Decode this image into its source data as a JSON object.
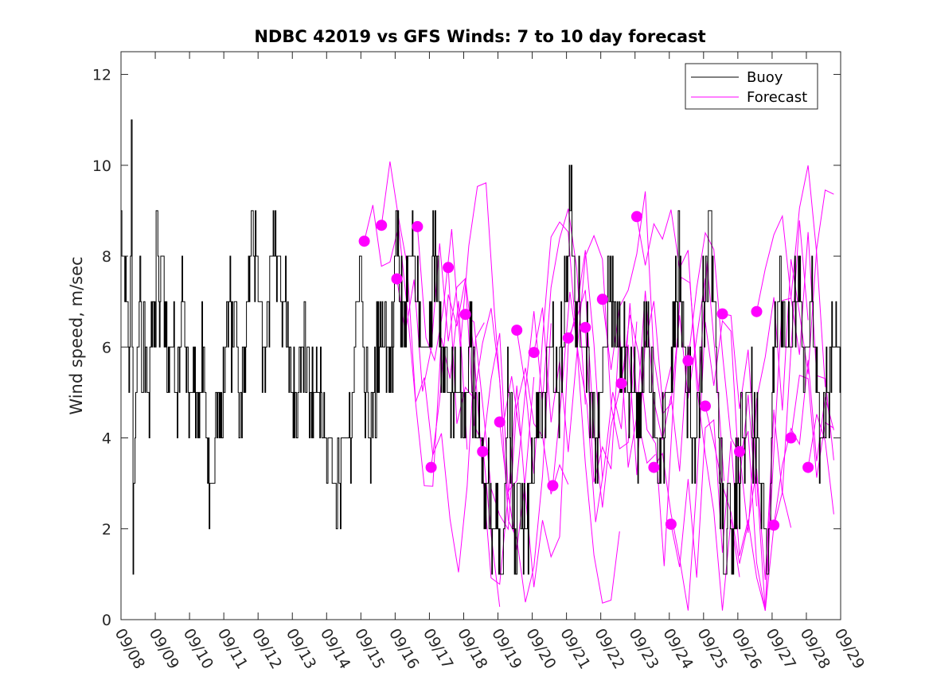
{
  "chart_data": {
    "type": "line",
    "title": "NDBC 42019 vs GFS Winds: 7 to 10 day forecast",
    "xlabel": "",
    "ylabel": "Wind speed, m/sec",
    "xlim": [
      0,
      21
    ],
    "ylim": [
      0,
      12.5
    ],
    "x_tick_labels": [
      "09/08",
      "09/09",
      "09/10",
      "09/11",
      "09/12",
      "09/13",
      "09/14",
      "09/15",
      "09/16",
      "09/17",
      "09/18",
      "09/19",
      "09/20",
      "09/21",
      "09/22",
      "09/23",
      "09/24",
      "09/25",
      "09/26",
      "09/27",
      "09/28",
      "09/29"
    ],
    "y_ticks": [
      0,
      2,
      4,
      6,
      8,
      10,
      12
    ],
    "legend": [
      "Buoy",
      "Forecast"
    ],
    "legend_position": "top-right",
    "colors": {
      "buoy": "#000000",
      "forecast": "#ff00ff"
    },
    "buoy_samples": [
      [
        0.0,
        9
      ],
      [
        0.05,
        8
      ],
      [
        0.15,
        7
      ],
      [
        0.25,
        6
      ],
      [
        0.3,
        11
      ],
      [
        0.35,
        2
      ],
      [
        0.45,
        5
      ],
      [
        0.55,
        8
      ],
      [
        0.6,
        5
      ],
      [
        0.7,
        6
      ],
      [
        0.8,
        5
      ],
      [
        0.9,
        7
      ],
      [
        1.0,
        6
      ],
      [
        1.05,
        9
      ],
      [
        1.1,
        7
      ],
      [
        1.2,
        8
      ],
      [
        1.3,
        6
      ],
      [
        1.5,
        6
      ],
      [
        1.6,
        5
      ],
      [
        1.8,
        7
      ],
      [
        1.9,
        6
      ],
      [
        2.0,
        5
      ],
      [
        2.3,
        5
      ],
      [
        2.4,
        6
      ],
      [
        2.5,
        4
      ],
      [
        2.55,
        3
      ],
      [
        2.7,
        3
      ],
      [
        2.8,
        5
      ],
      [
        3.0,
        5
      ],
      [
        3.1,
        7
      ],
      [
        3.3,
        6
      ],
      [
        3.5,
        5
      ],
      [
        3.6,
        6
      ],
      [
        3.8,
        9
      ],
      [
        3.9,
        8
      ],
      [
        4.0,
        7
      ],
      [
        4.2,
        6
      ],
      [
        4.4,
        8
      ],
      [
        4.6,
        8
      ],
      [
        4.7,
        7
      ],
      [
        4.9,
        6
      ],
      [
        5.0,
        5
      ],
      [
        5.1,
        5
      ],
      [
        5.3,
        6
      ],
      [
        5.6,
        5
      ],
      [
        5.8,
        5
      ],
      [
        5.9,
        4
      ],
      [
        6.1,
        4
      ],
      [
        6.2,
        3
      ],
      [
        6.4,
        3
      ],
      [
        6.5,
        4
      ],
      [
        6.7,
        4
      ],
      [
        6.85,
        6
      ],
      [
        7.0,
        8
      ],
      [
        7.1,
        5
      ],
      [
        7.3,
        4
      ],
      [
        7.5,
        6
      ],
      [
        7.7,
        6
      ],
      [
        7.9,
        6
      ],
      [
        8.0,
        8
      ],
      [
        8.2,
        7
      ],
      [
        8.5,
        8
      ],
      [
        8.8,
        6
      ],
      [
        9.0,
        6
      ],
      [
        9.1,
        8
      ],
      [
        9.4,
        6
      ],
      [
        9.6,
        5
      ],
      [
        9.8,
        5
      ],
      [
        10.0,
        4
      ],
      [
        10.2,
        6
      ],
      [
        10.4,
        4
      ],
      [
        10.7,
        3
      ],
      [
        10.9,
        2
      ],
      [
        11.1,
        1
      ],
      [
        11.3,
        5
      ],
      [
        11.5,
        2
      ],
      [
        11.6,
        3
      ],
      [
        11.8,
        2
      ],
      [
        12.0,
        3
      ],
      [
        12.1,
        4
      ],
      [
        12.3,
        5
      ],
      [
        12.5,
        6
      ],
      [
        12.7,
        5
      ],
      [
        12.9,
        6
      ],
      [
        13.1,
        9
      ],
      [
        13.3,
        7
      ],
      [
        13.5,
        6
      ],
      [
        13.7,
        5
      ],
      [
        13.9,
        4
      ],
      [
        14.1,
        6
      ],
      [
        14.3,
        7
      ],
      [
        14.5,
        6
      ],
      [
        14.7,
        6
      ],
      [
        14.9,
        5
      ],
      [
        15.1,
        4
      ],
      [
        15.3,
        6
      ],
      [
        15.5,
        5
      ],
      [
        15.7,
        3
      ],
      [
        15.9,
        4
      ],
      [
        16.1,
        6
      ],
      [
        16.3,
        8
      ],
      [
        16.5,
        5
      ],
      [
        16.7,
        4
      ],
      [
        16.85,
        5
      ],
      [
        17.0,
        7
      ],
      [
        17.2,
        9
      ],
      [
        17.4,
        5
      ],
      [
        17.6,
        1
      ],
      [
        17.8,
        2
      ],
      [
        18.0,
        3
      ],
      [
        18.3,
        5
      ],
      [
        18.5,
        4
      ],
      [
        18.7,
        3
      ],
      [
        18.9,
        1
      ],
      [
        19.0,
        5
      ],
      [
        19.2,
        7
      ],
      [
        19.5,
        6
      ],
      [
        19.7,
        7
      ],
      [
        20.0,
        6
      ],
      [
        20.2,
        7
      ],
      [
        20.4,
        4
      ],
      [
        20.6,
        5
      ],
      [
        20.8,
        6
      ],
      [
        21.0,
        6
      ]
    ],
    "forecast_series_count": 14,
    "forecast_points": [
      [
        7.1,
        8.33
      ],
      [
        7.6,
        8.68
      ],
      [
        8.05,
        7.5
      ],
      [
        8.65,
        8.65
      ],
      [
        9.05,
        3.35
      ],
      [
        9.55,
        7.75
      ],
      [
        10.05,
        6.72
      ],
      [
        10.55,
        3.7
      ],
      [
        11.05,
        4.35
      ],
      [
        11.55,
        6.37
      ],
      [
        12.05,
        5.88
      ],
      [
        12.6,
        2.95
      ],
      [
        13.05,
        6.2
      ],
      [
        13.55,
        6.43
      ],
      [
        14.05,
        7.05
      ],
      [
        14.6,
        5.2
      ],
      [
        15.05,
        8.87
      ],
      [
        15.55,
        3.35
      ],
      [
        16.05,
        2.1
      ],
      [
        16.55,
        5.7
      ],
      [
        17.05,
        4.7
      ],
      [
        17.55,
        6.73
      ],
      [
        18.05,
        3.7
      ],
      [
        18.55,
        6.78
      ],
      [
        19.05,
        2.08
      ],
      [
        19.55,
        4.0
      ],
      [
        20.05,
        3.35
      ]
    ]
  }
}
